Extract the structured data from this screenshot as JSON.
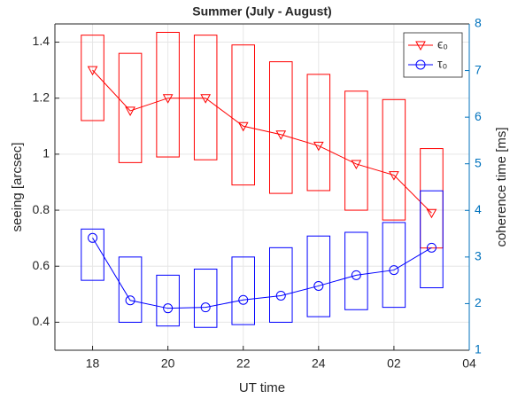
{
  "chart_data": {
    "type": "boxline",
    "title": "Summer (July - August)",
    "xlabel": "UT time",
    "ylabel": "seeing [arcsec]",
    "y2label": "coherence time [ms]",
    "x": [
      18,
      19,
      20,
      21,
      22,
      23,
      24,
      25,
      26,
      27
    ],
    "xlim": [
      17,
      28
    ],
    "xticks": [
      18,
      20,
      22,
      24,
      {
        "value": 26,
        "label": "02"
      },
      {
        "value": 28,
        "label": "04"
      }
    ],
    "ylim": [
      0.3,
      1.465
    ],
    "yticks": [
      0.4,
      0.6,
      0.8,
      1,
      1.2,
      1.4
    ],
    "y2lim": [
      1,
      8
    ],
    "y2ticks": [
      1,
      2,
      3,
      4,
      5,
      6,
      7,
      8
    ],
    "y2color": "#0072bd",
    "grid": true,
    "legend": "upper right",
    "series": [
      {
        "name": "ϵ₀",
        "color": "#ff0000",
        "marker": "triangle-down",
        "values": [
          1.3,
          1.155,
          1.2,
          1.2,
          1.1,
          1.07,
          1.03,
          0.965,
          0.925,
          0.79
        ],
        "low": [
          1.12,
          0.97,
          0.99,
          0.98,
          0.89,
          0.86,
          0.87,
          0.8,
          0.765,
          0.665
        ],
        "high": [
          1.425,
          1.36,
          1.435,
          1.425,
          1.39,
          1.33,
          1.285,
          1.225,
          1.195,
          1.02
        ]
      },
      {
        "name": "τ₀",
        "color": "#0000ff",
        "marker": "circle",
        "axis": "y2",
        "values": [
          3.41,
          2.07,
          1.9,
          1.92,
          2.08,
          2.17,
          2.38,
          2.61,
          2.72,
          3.2
        ],
        "low": [
          2.5,
          1.6,
          1.52,
          1.49,
          1.55,
          1.6,
          1.72,
          1.87,
          1.92,
          2.34
        ],
        "high": [
          3.6,
          3.0,
          2.61,
          2.74,
          3.0,
          3.2,
          3.45,
          3.53,
          3.74,
          4.42
        ]
      }
    ]
  }
}
